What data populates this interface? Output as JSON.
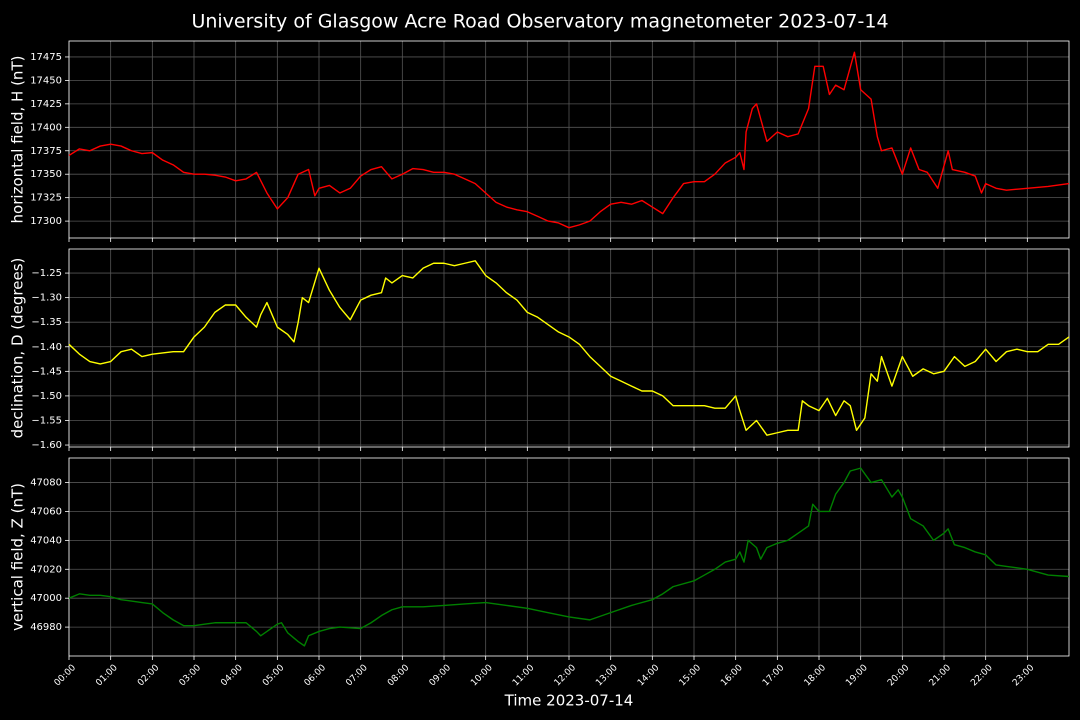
{
  "title": "University of Glasgow Acre Road Observatory magnetometer 2023-07-14",
  "chart_data": [
    {
      "type": "line",
      "ylabel": "horizontal field, H (nT)",
      "ylim": [
        17282,
        17492
      ],
      "yticks": [
        17300,
        17325,
        17350,
        17375,
        17400,
        17425,
        17450,
        17475
      ],
      "grid": true,
      "x": [
        0,
        0.25,
        0.5,
        0.75,
        1,
        1.25,
        1.5,
        1.75,
        2,
        2.25,
        2.5,
        2.75,
        3,
        3.25,
        3.5,
        3.75,
        4,
        4.25,
        4.5,
        4.75,
        5,
        5.25,
        5.5,
        5.75,
        5.9,
        6,
        6.25,
        6.5,
        6.75,
        7,
        7.25,
        7.5,
        7.75,
        8,
        8.25,
        8.5,
        8.75,
        9,
        9.25,
        9.5,
        9.75,
        10,
        10.25,
        10.5,
        10.75,
        11,
        11.25,
        11.5,
        11.75,
        12,
        12.25,
        12.5,
        12.75,
        13,
        13.25,
        13.5,
        13.75,
        14,
        14.25,
        14.5,
        14.75,
        15,
        15.25,
        15.5,
        15.75,
        16,
        16.1,
        16.2,
        16.25,
        16.4,
        16.5,
        16.75,
        17,
        17.25,
        17.5,
        17.75,
        17.9,
        18.1,
        18.25,
        18.4,
        18.6,
        18.85,
        19,
        19.25,
        19.4,
        19.5,
        19.75,
        20,
        20.2,
        20.4,
        20.6,
        20.85,
        21.1,
        21.2,
        21.5,
        21.75,
        21.9,
        22,
        22.25,
        22.5,
        23,
        23.5,
        24
      ],
      "series": [
        {
          "name": "H",
          "color": "#ff0000",
          "values": [
            17370,
            17377,
            17375,
            17380,
            17382,
            17380,
            17375,
            17372,
            17373,
            17365,
            17360,
            17352,
            17350,
            17350,
            17349,
            17347,
            17343,
            17345,
            17352,
            17330,
            17313,
            17325,
            17350,
            17355,
            17327,
            17335,
            17338,
            17330,
            17335,
            17348,
            17355,
            17358,
            17345,
            17350,
            17356,
            17355,
            17352,
            17352,
            17350,
            17345,
            17340,
            17330,
            17320,
            17315,
            17312,
            17310,
            17305,
            17300,
            17298,
            17293,
            17296,
            17300,
            17310,
            17318,
            17320,
            17318,
            17322,
            17315,
            17308,
            17325,
            17340,
            17342,
            17342,
            17350,
            17362,
            17368,
            17373,
            17355,
            17395,
            17420,
            17425,
            17385,
            17395,
            17390,
            17393,
            17420,
            17465,
            17465,
            17435,
            17445,
            17440,
            17480,
            17440,
            17430,
            17390,
            17375,
            17378,
            17350,
            17378,
            17355,
            17352,
            17335,
            17375,
            17355,
            17352,
            17348,
            17330,
            17340,
            17335,
            17333,
            17335,
            17337,
            17340
          ]
        }
      ]
    },
    {
      "type": "line",
      "ylabel": "declination, D (degrees)",
      "ylim": [
        -1.604,
        -1.201
      ],
      "yticks": [
        {
          "value": -1.25,
          "label": "−1.25"
        },
        {
          "value": -1.3,
          "label": "−1.30"
        },
        {
          "value": -1.35,
          "label": "−1.35"
        },
        {
          "value": -1.4,
          "label": "−1.40"
        },
        {
          "value": -1.45,
          "label": "−1.45"
        },
        {
          "value": -1.5,
          "label": "−1.50"
        },
        {
          "value": -1.55,
          "label": "−1.55"
        },
        {
          "value": -1.6,
          "label": "−1.60"
        }
      ],
      "grid": true,
      "x": [
        0,
        0.25,
        0.5,
        0.75,
        1,
        1.25,
        1.5,
        1.75,
        2,
        2.5,
        2.75,
        3,
        3.25,
        3.5,
        3.75,
        4,
        4.25,
        4.5,
        4.6,
        4.75,
        4.9,
        5,
        5.25,
        5.4,
        5.5,
        5.6,
        5.75,
        6,
        6.25,
        6.5,
        6.75,
        7,
        7.25,
        7.5,
        7.6,
        7.75,
        8,
        8.25,
        8.5,
        8.75,
        9,
        9.25,
        9.5,
        9.75,
        10,
        10.25,
        10.5,
        10.75,
        11,
        11.25,
        11.5,
        11.75,
        12,
        12.25,
        12.5,
        12.75,
        13,
        13.25,
        13.5,
        13.75,
        14,
        14.25,
        14.5,
        14.75,
        15,
        15.25,
        15.5,
        15.75,
        16,
        16.1,
        16.25,
        16.5,
        16.75,
        17,
        17.25,
        17.5,
        17.6,
        17.75,
        18,
        18.2,
        18.4,
        18.6,
        18.75,
        18.9,
        19.1,
        19.25,
        19.4,
        19.5,
        19.75,
        20,
        20.25,
        20.5,
        20.75,
        21,
        21.25,
        21.5,
        21.75,
        22,
        22.25,
        22.5,
        22.75,
        23,
        23.25,
        23.5,
        23.75,
        24
      ],
      "series": [
        {
          "name": "D",
          "color": "#ffff00",
          "values": [
            -1.395,
            -1.415,
            -1.43,
            -1.435,
            -1.43,
            -1.41,
            -1.405,
            -1.42,
            -1.415,
            -1.41,
            -1.41,
            -1.38,
            -1.36,
            -1.33,
            -1.315,
            -1.315,
            -1.34,
            -1.36,
            -1.335,
            -1.31,
            -1.34,
            -1.36,
            -1.375,
            -1.39,
            -1.35,
            -1.3,
            -1.31,
            -1.24,
            -1.285,
            -1.32,
            -1.345,
            -1.305,
            -1.295,
            -1.29,
            -1.26,
            -1.27,
            -1.255,
            -1.26,
            -1.24,
            -1.23,
            -1.23,
            -1.235,
            -1.23,
            -1.225,
            -1.255,
            -1.27,
            -1.29,
            -1.305,
            -1.33,
            -1.34,
            -1.355,
            -1.37,
            -1.38,
            -1.395,
            -1.42,
            -1.44,
            -1.46,
            -1.47,
            -1.48,
            -1.49,
            -1.49,
            -1.5,
            -1.52,
            -1.52,
            -1.52,
            -1.52,
            -1.525,
            -1.525,
            -1.5,
            -1.53,
            -1.57,
            -1.55,
            -1.58,
            -1.575,
            -1.57,
            -1.57,
            -1.51,
            -1.52,
            -1.53,
            -1.505,
            -1.54,
            -1.51,
            -1.52,
            -1.57,
            -1.545,
            -1.455,
            -1.47,
            -1.42,
            -1.48,
            -1.42,
            -1.46,
            -1.445,
            -1.455,
            -1.45,
            -1.42,
            -1.44,
            -1.43,
            -1.405,
            -1.43,
            -1.41,
            -1.405,
            -1.41,
            -1.41,
            -1.395,
            -1.395,
            -1.38
          ]
        }
      ]
    },
    {
      "type": "line",
      "ylabel": "vertical field, Z (nT)",
      "xlabel": "Time 2023-07-14",
      "xlim": [
        0,
        24
      ],
      "ylim": [
        46960,
        47097
      ],
      "yticks": [
        46980,
        47000,
        47020,
        47040,
        47060,
        47080
      ],
      "grid": true,
      "xticks": [
        {
          "value": 0,
          "label": "00:00"
        },
        {
          "value": 1,
          "label": "01:00"
        },
        {
          "value": 2,
          "label": "02:00"
        },
        {
          "value": 3,
          "label": "03:00"
        },
        {
          "value": 4,
          "label": "04:00"
        },
        {
          "value": 5,
          "label": "05:00"
        },
        {
          "value": 6,
          "label": "06:00"
        },
        {
          "value": 7,
          "label": "07:00"
        },
        {
          "value": 8,
          "label": "08:00"
        },
        {
          "value": 9,
          "label": "09:00"
        },
        {
          "value": 10,
          "label": "10:00"
        },
        {
          "value": 11,
          "label": "11:00"
        },
        {
          "value": 12,
          "label": "12:00"
        },
        {
          "value": 13,
          "label": "13:00"
        },
        {
          "value": 14,
          "label": "14:00"
        },
        {
          "value": 15,
          "label": "15:00"
        },
        {
          "value": 16,
          "label": "16:00"
        },
        {
          "value": 17,
          "label": "17:00"
        },
        {
          "value": 18,
          "label": "18:00"
        },
        {
          "value": 19,
          "label": "19:00"
        },
        {
          "value": 20,
          "label": "20:00"
        },
        {
          "value": 21,
          "label": "21:00"
        },
        {
          "value": 22,
          "label": "22:00"
        },
        {
          "value": 23,
          "label": "23:00"
        }
      ],
      "x": [
        0,
        0.25,
        0.5,
        0.75,
        1,
        1.25,
        1.5,
        1.75,
        2,
        2.25,
        2.5,
        2.75,
        3,
        3.25,
        3.5,
        4,
        4.25,
        4.5,
        4.6,
        4.75,
        5,
        5.1,
        5.25,
        5.5,
        5.65,
        5.75,
        6,
        6.25,
        6.5,
        7,
        7.25,
        7.5,
        7.75,
        8,
        8.5,
        9,
        9.5,
        10,
        10.5,
        11,
        11.5,
        12,
        12.5,
        13,
        13.5,
        14,
        14.25,
        14.5,
        15,
        15.25,
        15.5,
        15.75,
        16,
        16.1,
        16.2,
        16.3,
        16.5,
        16.6,
        16.75,
        17,
        17.25,
        17.5,
        17.75,
        17.85,
        18,
        18.25,
        18.4,
        18.6,
        18.75,
        19,
        19.25,
        19.5,
        19.75,
        19.9,
        20,
        20.2,
        20.5,
        20.75,
        21,
        21.1,
        21.25,
        21.5,
        21.75,
        22,
        22.25,
        22.5,
        23,
        23.5,
        24
      ],
      "series": [
        {
          "name": "Z",
          "color": "#008000",
          "values": [
            47000,
            47003,
            47002,
            47002,
            47001,
            46999,
            46998,
            46997,
            46996,
            46990,
            46985,
            46981,
            46981,
            46982,
            46983,
            46983,
            46983,
            46977,
            46974,
            46977,
            46982,
            46983,
            46976,
            46970,
            46967,
            46974,
            46977,
            46979,
            46980,
            46979,
            46983,
            46988,
            46992,
            46994,
            46994,
            46995,
            46996,
            46997,
            46995,
            46993,
            46990,
            46987,
            46985,
            46990,
            46995,
            46999,
            47003,
            47008,
            47012,
            47016,
            47020,
            47025,
            47027,
            47032,
            47025,
            47040,
            47035,
            47027,
            47035,
            47038,
            47040,
            47045,
            47050,
            47065,
            47060,
            47060,
            47072,
            47080,
            47088,
            47090,
            47080,
            47082,
            47070,
            47075,
            47070,
            47055,
            47050,
            47040,
            47045,
            47048,
            47037,
            47035,
            47032,
            47030,
            47023,
            47022,
            47020,
            47016,
            47015
          ]
        }
      ]
    }
  ]
}
